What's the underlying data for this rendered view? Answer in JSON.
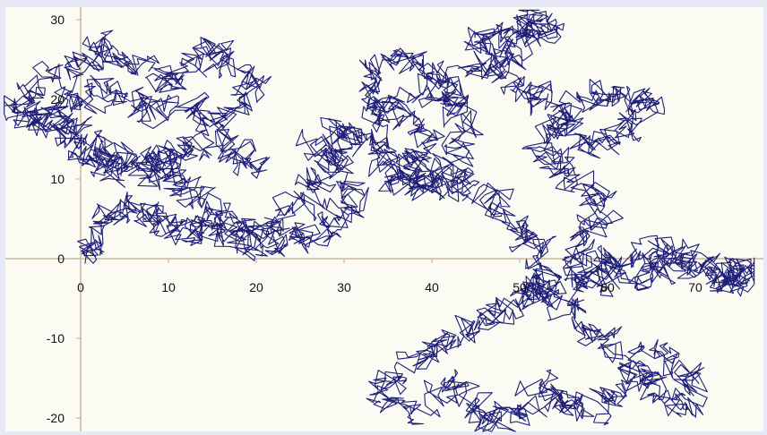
{
  "colors": {
    "page_bg": "#e7e9f6",
    "plot_bg": "#fbfbf3",
    "axis": "#c9b899",
    "walk": "#1f1f7a"
  },
  "chart_data": {
    "type": "line",
    "title": "",
    "xlabel": "",
    "ylabel": "",
    "xlim": [
      -9,
      77
    ],
    "ylim": [
      -22,
      31.5
    ],
    "grid": false,
    "legend": "none",
    "x_ticks": [
      "0",
      "10",
      "20",
      "30",
      "40",
      "50",
      "60",
      "70"
    ],
    "y_ticks": [
      "30",
      "20",
      "10",
      "0",
      "-10",
      "-20"
    ],
    "description_of_series": "2D random walk",
    "waypoints": [
      [
        0,
        0
      ],
      [
        1.5,
        2.5
      ],
      [
        3.5,
        5
      ],
      [
        6,
        6.5
      ],
      [
        8,
        5
      ],
      [
        10,
        4
      ],
      [
        12,
        3.5
      ],
      [
        15,
        4.5
      ],
      [
        17,
        3
      ],
      [
        19,
        2.5
      ],
      [
        22,
        1.5
      ],
      [
        24,
        2.5
      ],
      [
        27,
        3.5
      ],
      [
        30,
        5.5
      ],
      [
        32,
        8
      ],
      [
        29,
        12
      ],
      [
        27,
        15
      ],
      [
        30,
        16
      ],
      [
        34,
        14
      ],
      [
        36,
        11
      ],
      [
        38,
        10
      ],
      [
        41,
        9
      ],
      [
        43,
        11
      ],
      [
        46,
        8
      ],
      [
        48,
        6
      ],
      [
        50,
        3
      ],
      [
        52,
        1
      ],
      [
        53,
        -2
      ],
      [
        52,
        -4
      ],
      [
        50,
        -5
      ],
      [
        47,
        -7
      ],
      [
        44,
        -9
      ],
      [
        41,
        -11
      ],
      [
        39,
        -13
      ],
      [
        35,
        -15
      ],
      [
        35,
        -19
      ],
      [
        39,
        -18
      ],
      [
        43,
        -16
      ],
      [
        45,
        -19
      ],
      [
        47,
        -21
      ],
      [
        50,
        -19
      ],
      [
        52,
        -16
      ],
      [
        55,
        -18
      ],
      [
        57,
        -20
      ],
      [
        59,
        -17
      ],
      [
        62,
        -15
      ],
      [
        65,
        -16
      ],
      [
        67,
        -19
      ],
      [
        70,
        -17
      ],
      [
        68,
        -14
      ],
      [
        65,
        -12
      ],
      [
        62,
        -12
      ],
      [
        59,
        -10
      ],
      [
        56,
        -7
      ],
      [
        53,
        -5
      ],
      [
        57,
        -3
      ],
      [
        60,
        -1
      ],
      [
        63,
        0
      ],
      [
        66,
        1
      ],
      [
        69,
        0
      ],
      [
        72,
        -1
      ],
      [
        74,
        -2
      ],
      [
        75.5,
        -3
      ],
      [
        76,
        -1
      ],
      [
        73,
        -3
      ],
      [
        70,
        -2
      ],
      [
        67,
        -1
      ],
      [
        64,
        -2
      ],
      [
        61,
        -3
      ],
      [
        58,
        -2
      ],
      [
        56,
        0
      ],
      [
        57,
        3
      ],
      [
        60,
        5
      ],
      [
        58,
        9
      ],
      [
        55,
        11
      ],
      [
        52,
        13
      ],
      [
        54,
        16
      ],
      [
        56,
        19
      ],
      [
        59,
        21
      ],
      [
        62,
        20
      ],
      [
        65,
        20
      ],
      [
        63,
        17
      ],
      [
        60,
        15
      ],
      [
        57,
        15
      ],
      [
        55,
        18
      ],
      [
        52,
        20
      ],
      [
        49,
        23
      ],
      [
        45,
        26
      ],
      [
        47,
        28
      ],
      [
        50,
        29
      ],
      [
        52,
        30.5
      ],
      [
        54,
        29
      ],
      [
        51,
        27
      ],
      [
        48,
        25
      ],
      [
        45,
        23
      ],
      [
        42,
        21
      ],
      [
        39,
        24
      ],
      [
        36,
        26
      ],
      [
        34,
        23
      ],
      [
        34,
        20
      ],
      [
        37,
        17
      ],
      [
        40,
        15
      ],
      [
        38,
        12
      ],
      [
        35,
        10
      ],
      [
        38,
        9
      ],
      [
        42,
        12
      ],
      [
        44,
        16
      ],
      [
        43,
        20
      ],
      [
        40,
        22
      ],
      [
        36,
        19
      ],
      [
        33,
        16
      ],
      [
        30,
        14
      ],
      [
        28,
        12
      ],
      [
        26,
        9
      ],
      [
        24,
        6
      ],
      [
        21,
        3
      ],
      [
        18,
        4
      ],
      [
        16,
        6
      ],
      [
        14,
        8
      ],
      [
        11,
        10
      ],
      [
        9,
        12
      ],
      [
        7,
        13
      ],
      [
        4,
        11
      ],
      [
        1,
        13
      ],
      [
        -2,
        15
      ],
      [
        -4,
        17
      ],
      [
        -6,
        18
      ],
      [
        -8,
        19
      ],
      [
        -6,
        21
      ],
      [
        -3,
        23
      ],
      [
        0,
        24
      ],
      [
        2,
        27
      ],
      [
        4,
        25
      ],
      [
        7,
        23
      ],
      [
        10,
        22
      ],
      [
        13,
        24
      ],
      [
        15,
        26
      ],
      [
        17,
        24
      ],
      [
        19,
        22
      ],
      [
        18,
        19
      ],
      [
        15,
        18
      ],
      [
        12,
        19
      ],
      [
        9,
        18
      ],
      [
        6,
        19
      ],
      [
        3,
        21
      ],
      [
        0,
        20
      ],
      [
        -3,
        19
      ],
      [
        -1,
        16
      ],
      [
        2,
        14
      ],
      [
        5,
        13
      ],
      [
        8,
        11
      ],
      [
        11,
        12
      ],
      [
        13,
        14
      ],
      [
        16,
        15
      ],
      [
        18,
        13
      ],
      [
        20,
        11
      ]
    ]
  }
}
